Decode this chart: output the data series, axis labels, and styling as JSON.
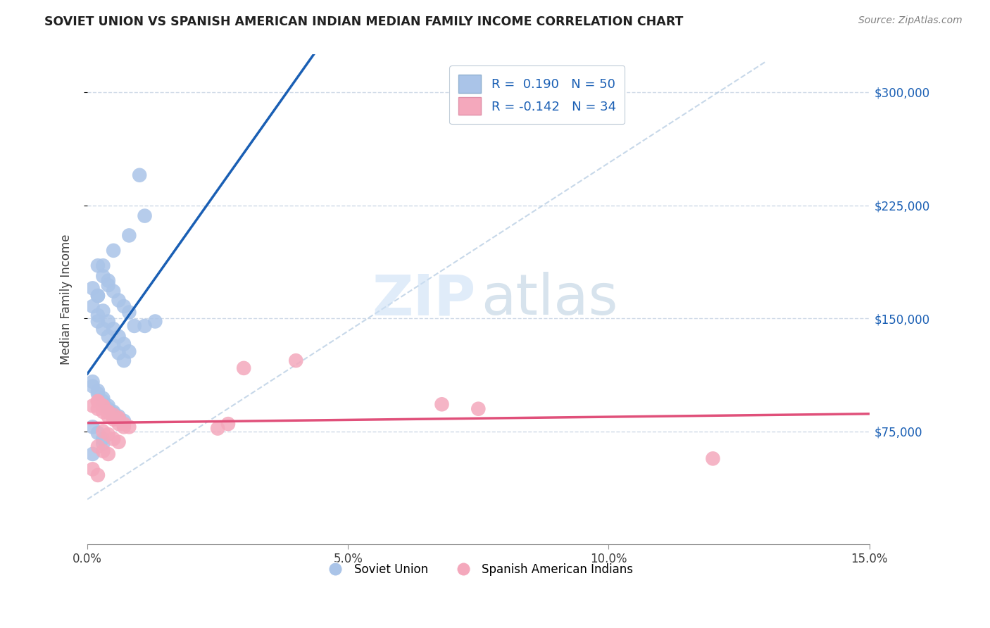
{
  "title": "SOVIET UNION VS SPANISH AMERICAN INDIAN MEDIAN FAMILY INCOME CORRELATION CHART",
  "source": "Source: ZipAtlas.com",
  "ylabel": "Median Family Income",
  "xlim": [
    0.0,
    0.15
  ],
  "ylim": [
    0,
    325000
  ],
  "y_ticks": [
    75000,
    150000,
    225000,
    300000
  ],
  "y_tick_labels": [
    "$75,000",
    "$150,000",
    "$225,000",
    "$300,000"
  ],
  "x_ticks": [
    0.0,
    0.05,
    0.1,
    0.15
  ],
  "legend_label1": "Soviet Union",
  "legend_label2": "Spanish American Indians",
  "legend_R1": "R =  0.190",
  "legend_N1": "N = 50",
  "legend_R2": "R = -0.142",
  "legend_N2": "N = 34",
  "color_blue": "#aac4e8",
  "color_pink": "#f4a8bc",
  "trendline_blue": "#1a5fb4",
  "trendline_pink": "#e0507a",
  "ref_line_color": "#b0c8e0",
  "grid_color": "#c8d4e4",
  "blue_x": [
    0.005,
    0.01,
    0.011,
    0.008,
    0.003,
    0.004,
    0.002,
    0.003,
    0.004,
    0.005,
    0.006,
    0.007,
    0.008,
    0.002,
    0.003,
    0.004,
    0.005,
    0.006,
    0.007,
    0.008,
    0.002,
    0.003,
    0.004,
    0.005,
    0.006,
    0.007,
    0.001,
    0.002,
    0.003,
    0.004,
    0.005,
    0.006,
    0.007,
    0.001,
    0.002,
    0.003,
    0.004,
    0.005,
    0.001,
    0.002,
    0.003,
    0.009,
    0.011,
    0.013,
    0.001,
    0.002,
    0.001,
    0.002,
    0.003,
    0.001
  ],
  "blue_y": [
    195000,
    245000,
    218000,
    205000,
    185000,
    175000,
    185000,
    178000,
    172000,
    168000,
    162000,
    158000,
    154000,
    165000,
    155000,
    148000,
    143000,
    138000,
    133000,
    128000,
    148000,
    143000,
    138000,
    132000,
    127000,
    122000,
    108000,
    102000,
    97000,
    92000,
    88000,
    85000,
    82000,
    105000,
    100000,
    95000,
    90000,
    87000,
    78000,
    74000,
    70000,
    145000,
    145000,
    148000,
    170000,
    165000,
    158000,
    152000,
    67000,
    60000
  ],
  "pink_x": [
    0.001,
    0.002,
    0.003,
    0.004,
    0.005,
    0.006,
    0.007,
    0.002,
    0.003,
    0.004,
    0.005,
    0.006,
    0.007,
    0.008,
    0.003,
    0.004,
    0.005,
    0.006,
    0.03,
    0.04,
    0.068,
    0.075,
    0.027,
    0.002,
    0.003,
    0.004,
    0.001,
    0.002,
    0.002,
    0.003,
    0.004,
    0.006,
    0.12,
    0.025
  ],
  "pink_y": [
    92000,
    90000,
    88000,
    85000,
    83000,
    80000,
    78000,
    95000,
    92000,
    88000,
    86000,
    83000,
    80000,
    78000,
    75000,
    73000,
    70000,
    68000,
    117000,
    122000,
    93000,
    90000,
    80000,
    65000,
    62000,
    60000,
    50000,
    46000,
    95000,
    92000,
    88000,
    84000,
    57000,
    77000
  ]
}
